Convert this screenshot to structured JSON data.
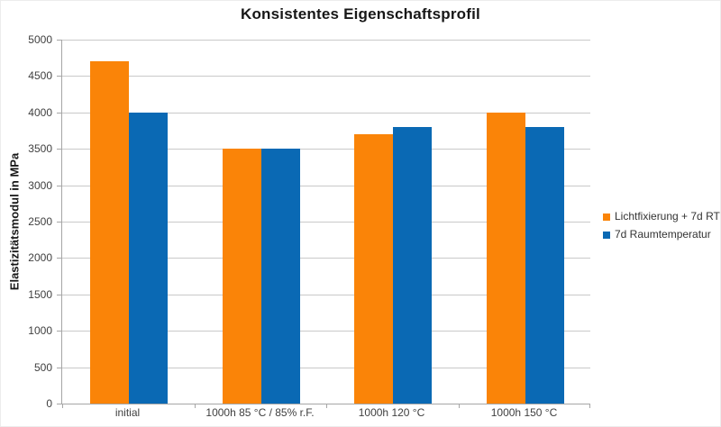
{
  "chart_data": {
    "type": "bar",
    "title": "Konsistentes Eigenschaftsprofil",
    "ylabel": "Elastizitätsmodul in MPa",
    "xlabel": "",
    "categories": [
      "initial",
      "1000h 85 °C / 85% r.F.",
      "1000h 120 °C",
      "1000h 150 °C"
    ],
    "series": [
      {
        "name": "Lichtfixierung + 7d RT",
        "color": "#fa8408",
        "values": [
          4700,
          3500,
          3700,
          4000
        ]
      },
      {
        "name": "7d Raumtemperatur",
        "color": "#0a69b4",
        "values": [
          4000,
          3500,
          3800,
          3800
        ]
      }
    ],
    "ylim": [
      0,
      5000
    ],
    "ytick_step": 500,
    "grid": true,
    "legend_position": "right"
  },
  "colors": {
    "gridline": "#c9c9c9",
    "axis": "#a6a6a6",
    "tick_text": "#3f3f3f",
    "title_text": "#171717"
  }
}
